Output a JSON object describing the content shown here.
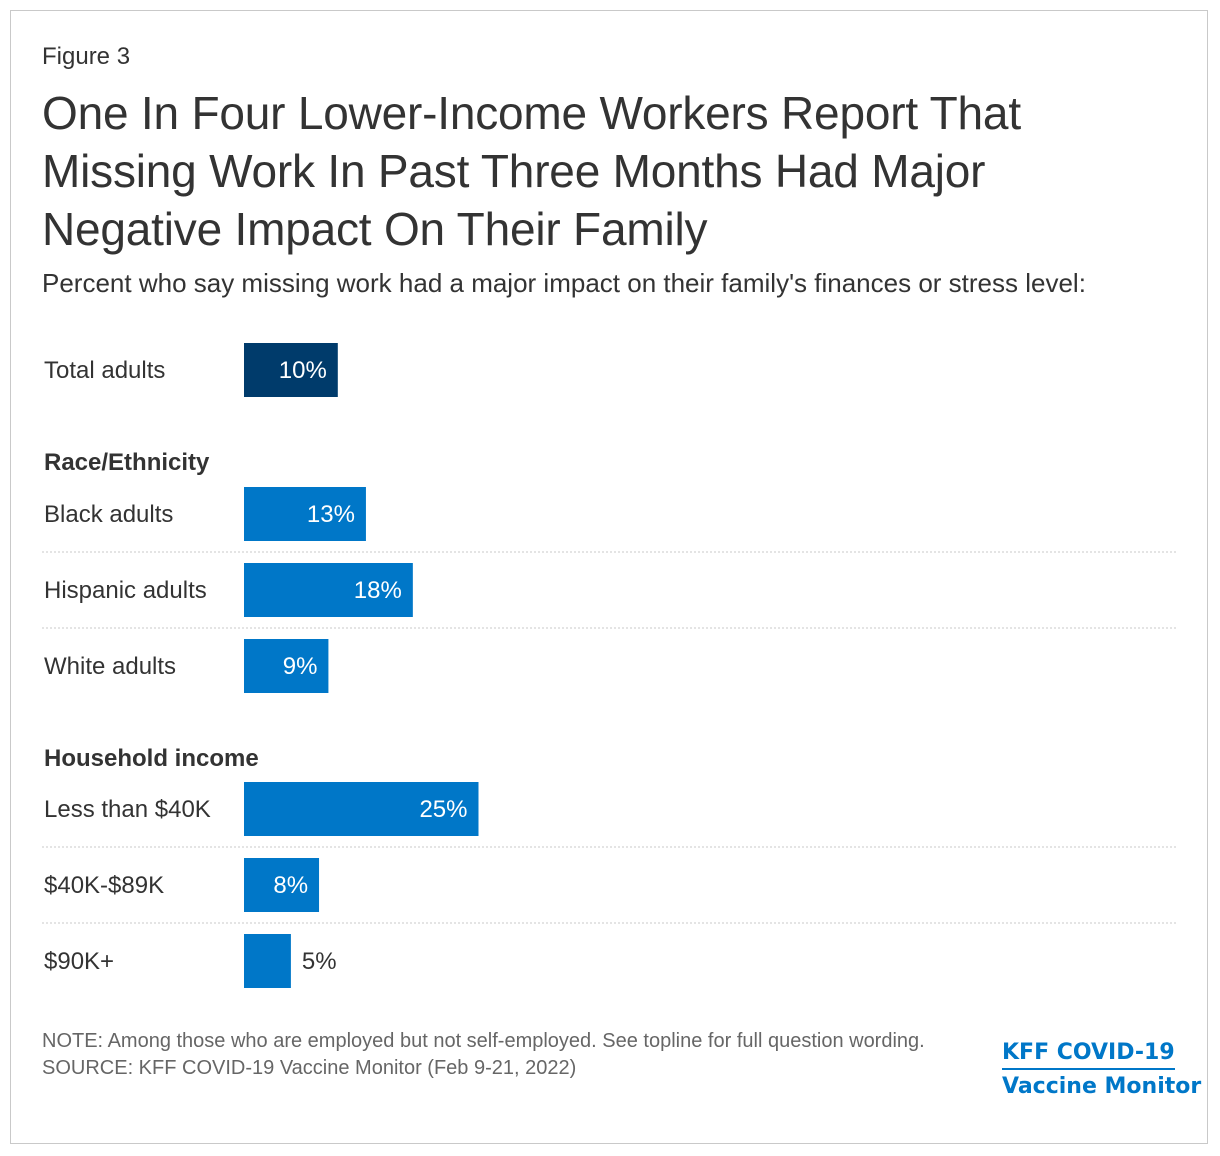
{
  "figure_label": "Figure 3",
  "title": "One In Four Lower-Income Workers Report That Missing Work In Past Three Months Had Major Negative Impact On Their Family",
  "subtitle": "Percent who say missing work had a major impact on their family's finances or stress level:",
  "note": "NOTE: Among those who are employed but not self-employed. See topline for full question wording.",
  "source": "SOURCE: KFF COVID-19 Vaccine Monitor (Feb 9-21, 2022)",
  "logo": {
    "line1": "KFF COVID-19",
    "line2": "Vaccine Monitor"
  },
  "colors": {
    "total_bar": "#003b6b",
    "group_bar": "#0077c8",
    "text": "#333333",
    "divider": "#c8c8c8"
  },
  "chart_data": {
    "type": "bar",
    "orientation": "horizontal",
    "value_suffix": "%",
    "groups": [
      {
        "heading": "",
        "rows": [
          {
            "label": "Total adults",
            "value": 10,
            "style": "total"
          }
        ]
      },
      {
        "heading": "Race/Ethnicity",
        "rows": [
          {
            "label": "Black adults",
            "value": 13,
            "style": "group"
          },
          {
            "label": "Hispanic adults",
            "value": 18,
            "style": "group"
          },
          {
            "label": "White adults",
            "value": 9,
            "style": "group"
          }
        ]
      },
      {
        "heading": "Household income",
        "rows": [
          {
            "label": "Less than $40K",
            "value": 25,
            "style": "group"
          },
          {
            "label": "$40K-$89K",
            "value": 8,
            "style": "group"
          },
          {
            "label": "$90K+",
            "value": 5,
            "style": "group"
          }
        ]
      }
    ]
  }
}
